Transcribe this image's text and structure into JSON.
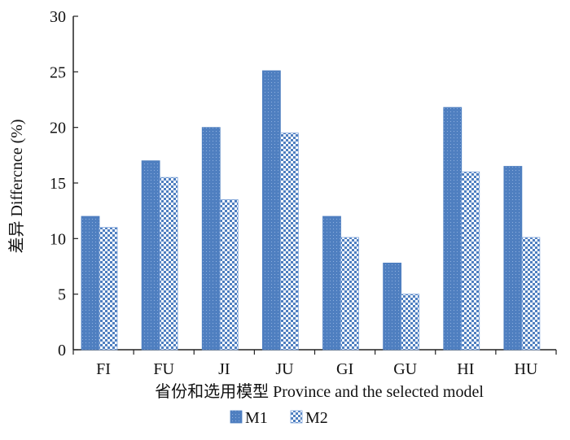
{
  "chart_data": {
    "type": "bar",
    "categories": [
      "FI",
      "FU",
      "JI",
      "JU",
      "GI",
      "GU",
      "HI",
      "HU"
    ],
    "series": [
      {
        "name": "M1",
        "values": [
          12.0,
          17.0,
          20.0,
          25.1,
          12.0,
          7.8,
          21.8,
          16.5
        ],
        "color": "#4f7fc0",
        "pattern": "fine-dots"
      },
      {
        "name": "M2",
        "values": [
          11.0,
          15.5,
          13.5,
          19.5,
          10.1,
          5.0,
          16.0,
          10.1
        ],
        "color": "#7ea4da",
        "pattern": "checker"
      }
    ],
    "xlabel": "省份和选用模型 Province and the selected model",
    "ylabel": "差异 Differcnce (%)",
    "ylim": [
      0,
      30
    ],
    "yticks": [
      0,
      5,
      10,
      15,
      20,
      25,
      30
    ],
    "grid": false,
    "legend_position": "bottom-center"
  }
}
